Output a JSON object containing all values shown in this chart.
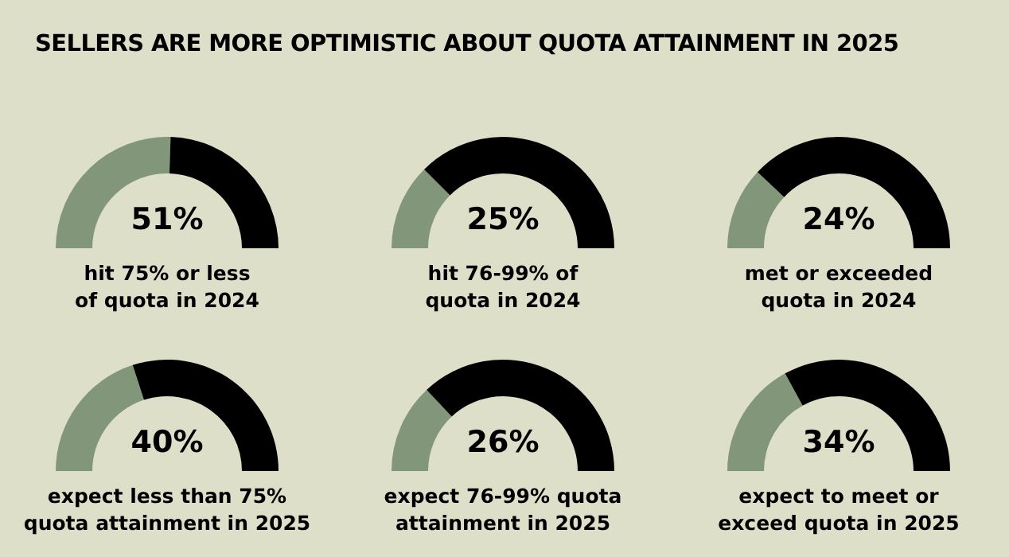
{
  "chart_data": [
    {
      "type": "other",
      "title": "SELLERS ARE MORE OPTIMISTIC ABOUT QUOTA ATTAINMENT IN 2025"
    },
    {
      "type": "donut",
      "title": "hit 75% or less of quota in 2024",
      "categories": [
        null,
        null
      ],
      "values": [
        51,
        49
      ],
      "colors": [
        "#82977a",
        "#000000"
      ],
      "annotations": [
        "51%"
      ]
    },
    {
      "type": "donut",
      "title": "hit 76-99% of quota in 2024",
      "categories": [
        null,
        null
      ],
      "values": [
        25,
        75
      ],
      "colors": [
        "#82977a",
        "#000000"
      ],
      "annotations": [
        "25%"
      ]
    },
    {
      "type": "donut",
      "title": "met or exceeded quota in 2024",
      "categories": [
        null,
        null
      ],
      "values": [
        24,
        76
      ],
      "colors": [
        "#82977a",
        "#000000"
      ],
      "annotations": [
        "24%"
      ]
    },
    {
      "type": "donut",
      "title": "expect less than 75% quota attainment in 2025",
      "categories": [
        null,
        null
      ],
      "values": [
        40,
        60
      ],
      "colors": [
        "#82977a",
        "#000000"
      ],
      "annotations": [
        "40%"
      ]
    },
    {
      "type": "donut",
      "title": "expect 76-99% quota attainment in 2025",
      "categories": [
        null,
        null
      ],
      "values": [
        26,
        74
      ],
      "colors": [
        "#82977a",
        "#000000"
      ],
      "annotations": [
        "26%"
      ]
    },
    {
      "type": "donut",
      "title": "expect to meet or exceed quota in 2025",
      "categories": [
        null,
        null
      ],
      "values": [
        34,
        66
      ],
      "colors": [
        "#82977a",
        "#000000"
      ],
      "annotations": [
        "34%"
      ]
    }
  ]
}
